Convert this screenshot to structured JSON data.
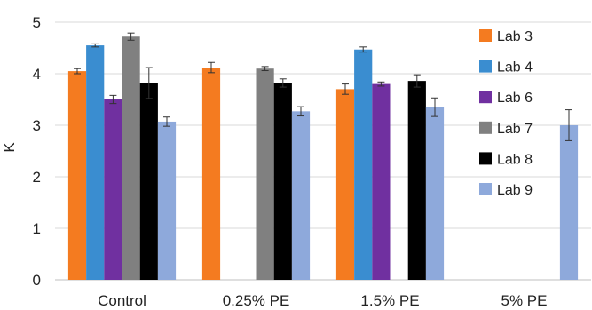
{
  "chart_data": {
    "type": "bar",
    "title": "",
    "xlabel": "",
    "ylabel": "K",
    "ylim": [
      0,
      5
    ],
    "yticks": [
      0,
      1,
      2,
      3,
      4,
      5
    ],
    "grid": true,
    "legend_position": "right",
    "categories": [
      "Control",
      "0.25% PE",
      "1.5% PE",
      "5% PE"
    ],
    "series": [
      {
        "name": "Lab 3",
        "color": "#F47B20",
        "values": [
          4.05,
          4.12,
          3.7,
          null
        ],
        "errors": [
          0.05,
          0.1,
          0.1,
          null
        ]
      },
      {
        "name": "Lab 4",
        "color": "#3A8DD0",
        "values": [
          4.55,
          null,
          4.47,
          null
        ],
        "errors": [
          0.03,
          null,
          0.05,
          null
        ]
      },
      {
        "name": "Lab 6",
        "color": "#7030A0",
        "values": [
          3.5,
          null,
          3.8,
          null
        ],
        "errors": [
          0.08,
          null,
          0.04,
          null
        ]
      },
      {
        "name": "Lab 7",
        "color": "#808080",
        "values": [
          4.72,
          4.1,
          null,
          null
        ],
        "errors": [
          0.07,
          0.04,
          null,
          null
        ]
      },
      {
        "name": "Lab 8",
        "color": "#000000",
        "values": [
          3.82,
          3.82,
          3.86,
          null
        ],
        "errors": [
          0.3,
          0.08,
          0.12,
          null
        ]
      },
      {
        "name": "Lab 9",
        "color": "#8EA9DB",
        "values": [
          3.07,
          3.27,
          3.35,
          3.0
        ],
        "errors": [
          0.09,
          0.09,
          0.18,
          0.3
        ]
      }
    ]
  }
}
